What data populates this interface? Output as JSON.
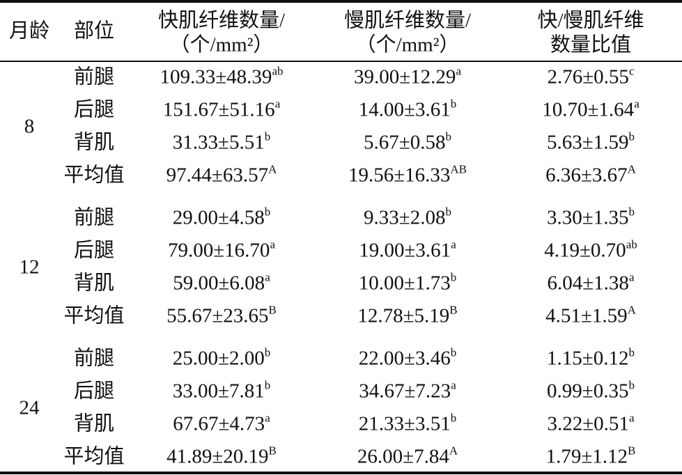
{
  "table": {
    "header": [
      {
        "lines": [
          "月龄"
        ]
      },
      {
        "lines": [
          "部位"
        ]
      },
      {
        "lines": [
          "快肌纤维数量/",
          "（个/mm²）"
        ]
      },
      {
        "lines": [
          "慢肌纤维数量/",
          "（个/mm²）"
        ]
      },
      {
        "lines": [
          "快/慢肌纤维",
          "数量比值"
        ]
      }
    ],
    "groups": [
      {
        "month": "8",
        "rows": [
          {
            "part": "前腿",
            "cells": [
              {
                "value": "109.33±48.39",
                "sup": "ab"
              },
              {
                "value": "39.00±12.29",
                "sup": "a"
              },
              {
                "value": "2.76±0.55",
                "sup": "c"
              }
            ]
          },
          {
            "part": "后腿",
            "cells": [
              {
                "value": "151.67±51.16",
                "sup": "a"
              },
              {
                "value": "14.00±3.61",
                "sup": "b"
              },
              {
                "value": "10.70±1.64",
                "sup": "a"
              }
            ]
          },
          {
            "part": "背肌",
            "cells": [
              {
                "value": "31.33±5.51",
                "sup": "b"
              },
              {
                "value": "5.67±0.58",
                "sup": "b"
              },
              {
                "value": "5.63±1.59",
                "sup": "b"
              }
            ]
          },
          {
            "part": "平均值",
            "cells": [
              {
                "value": "97.44±63.57",
                "sup": "A"
              },
              {
                "value": "19.56±16.33",
                "sup": "AB"
              },
              {
                "value": "6.36±3.67",
                "sup": "A"
              }
            ]
          }
        ]
      },
      {
        "month": "12",
        "rows": [
          {
            "part": "前腿",
            "cells": [
              {
                "value": "29.00±4.58",
                "sup": "b"
              },
              {
                "value": "9.33±2.08",
                "sup": "b"
              },
              {
                "value": "3.30±1.35",
                "sup": "b"
              }
            ]
          },
          {
            "part": "后腿",
            "cells": [
              {
                "value": "79.00±16.70",
                "sup": "a"
              },
              {
                "value": "19.00±3.61",
                "sup": "a"
              },
              {
                "value": "4.19±0.70",
                "sup": "ab"
              }
            ]
          },
          {
            "part": "背肌",
            "cells": [
              {
                "value": "59.00±6.08",
                "sup": "a"
              },
              {
                "value": "10.00±1.73",
                "sup": "b"
              },
              {
                "value": "6.04±1.38",
                "sup": "a"
              }
            ]
          },
          {
            "part": "平均值",
            "cells": [
              {
                "value": "55.67±23.65",
                "sup": "B"
              },
              {
                "value": "12.78±5.19",
                "sup": "B"
              },
              {
                "value": "4.51±1.59",
                "sup": "A"
              }
            ]
          }
        ]
      },
      {
        "month": "24",
        "rows": [
          {
            "part": "前腿",
            "cells": [
              {
                "value": "25.00±2.00",
                "sup": "b"
              },
              {
                "value": "22.00±3.46",
                "sup": "b"
              },
              {
                "value": "1.15±0.12",
                "sup": "b"
              }
            ]
          },
          {
            "part": "后腿",
            "cells": [
              {
                "value": "33.00±7.81",
                "sup": "b"
              },
              {
                "value": "34.67±7.23",
                "sup": "a"
              },
              {
                "value": "0.99±0.35",
                "sup": "b"
              }
            ]
          },
          {
            "part": "背肌",
            "cells": [
              {
                "value": "67.67±4.73",
                "sup": "a"
              },
              {
                "value": "21.33±3.51",
                "sup": "b"
              },
              {
                "value": "3.22±0.51",
                "sup": "a"
              }
            ]
          },
          {
            "part": "平均值",
            "cells": [
              {
                "value": "41.89±20.19",
                "sup": "B"
              },
              {
                "value": "26.00±7.84",
                "sup": "A"
              },
              {
                "value": "1.79±1.12",
                "sup": "B"
              }
            ]
          }
        ]
      }
    ]
  }
}
